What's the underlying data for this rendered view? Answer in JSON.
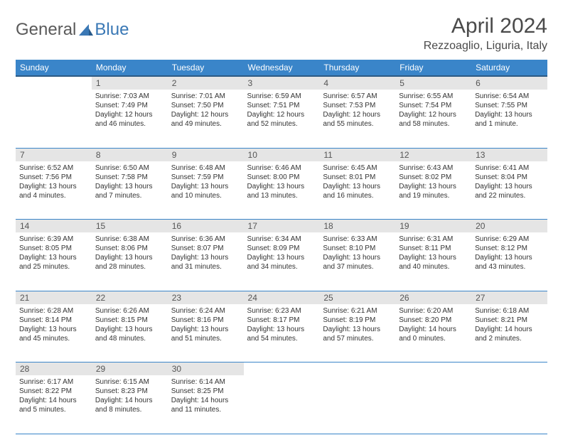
{
  "logo": {
    "general": "General",
    "blue": "Blue"
  },
  "title": "April 2024",
  "location": "Rezzoaglio, Liguria, Italy",
  "header_bg": "#3a85c9",
  "header_border": "#2c5a84",
  "cell_border": "#3a85c9",
  "daynum_bg": "#e5e5e5",
  "weekdays": [
    "Sunday",
    "Monday",
    "Tuesday",
    "Wednesday",
    "Thursday",
    "Friday",
    "Saturday"
  ],
  "rows": [
    {
      "nums": [
        "",
        "1",
        "2",
        "3",
        "4",
        "5",
        "6"
      ],
      "cells": [
        null,
        {
          "sr": "Sunrise: 7:03 AM",
          "ss": "Sunset: 7:49 PM",
          "d1": "Daylight: 12 hours",
          "d2": "and 46 minutes."
        },
        {
          "sr": "Sunrise: 7:01 AM",
          "ss": "Sunset: 7:50 PM",
          "d1": "Daylight: 12 hours",
          "d2": "and 49 minutes."
        },
        {
          "sr": "Sunrise: 6:59 AM",
          "ss": "Sunset: 7:51 PM",
          "d1": "Daylight: 12 hours",
          "d2": "and 52 minutes."
        },
        {
          "sr": "Sunrise: 6:57 AM",
          "ss": "Sunset: 7:53 PM",
          "d1": "Daylight: 12 hours",
          "d2": "and 55 minutes."
        },
        {
          "sr": "Sunrise: 6:55 AM",
          "ss": "Sunset: 7:54 PM",
          "d1": "Daylight: 12 hours",
          "d2": "and 58 minutes."
        },
        {
          "sr": "Sunrise: 6:54 AM",
          "ss": "Sunset: 7:55 PM",
          "d1": "Daylight: 13 hours",
          "d2": "and 1 minute."
        }
      ]
    },
    {
      "nums": [
        "7",
        "8",
        "9",
        "10",
        "11",
        "12",
        "13"
      ],
      "cells": [
        {
          "sr": "Sunrise: 6:52 AM",
          "ss": "Sunset: 7:56 PM",
          "d1": "Daylight: 13 hours",
          "d2": "and 4 minutes."
        },
        {
          "sr": "Sunrise: 6:50 AM",
          "ss": "Sunset: 7:58 PM",
          "d1": "Daylight: 13 hours",
          "d2": "and 7 minutes."
        },
        {
          "sr": "Sunrise: 6:48 AM",
          "ss": "Sunset: 7:59 PM",
          "d1": "Daylight: 13 hours",
          "d2": "and 10 minutes."
        },
        {
          "sr": "Sunrise: 6:46 AM",
          "ss": "Sunset: 8:00 PM",
          "d1": "Daylight: 13 hours",
          "d2": "and 13 minutes."
        },
        {
          "sr": "Sunrise: 6:45 AM",
          "ss": "Sunset: 8:01 PM",
          "d1": "Daylight: 13 hours",
          "d2": "and 16 minutes."
        },
        {
          "sr": "Sunrise: 6:43 AM",
          "ss": "Sunset: 8:02 PM",
          "d1": "Daylight: 13 hours",
          "d2": "and 19 minutes."
        },
        {
          "sr": "Sunrise: 6:41 AM",
          "ss": "Sunset: 8:04 PM",
          "d1": "Daylight: 13 hours",
          "d2": "and 22 minutes."
        }
      ]
    },
    {
      "nums": [
        "14",
        "15",
        "16",
        "17",
        "18",
        "19",
        "20"
      ],
      "cells": [
        {
          "sr": "Sunrise: 6:39 AM",
          "ss": "Sunset: 8:05 PM",
          "d1": "Daylight: 13 hours",
          "d2": "and 25 minutes."
        },
        {
          "sr": "Sunrise: 6:38 AM",
          "ss": "Sunset: 8:06 PM",
          "d1": "Daylight: 13 hours",
          "d2": "and 28 minutes."
        },
        {
          "sr": "Sunrise: 6:36 AM",
          "ss": "Sunset: 8:07 PM",
          "d1": "Daylight: 13 hours",
          "d2": "and 31 minutes."
        },
        {
          "sr": "Sunrise: 6:34 AM",
          "ss": "Sunset: 8:09 PM",
          "d1": "Daylight: 13 hours",
          "d2": "and 34 minutes."
        },
        {
          "sr": "Sunrise: 6:33 AM",
          "ss": "Sunset: 8:10 PM",
          "d1": "Daylight: 13 hours",
          "d2": "and 37 minutes."
        },
        {
          "sr": "Sunrise: 6:31 AM",
          "ss": "Sunset: 8:11 PM",
          "d1": "Daylight: 13 hours",
          "d2": "and 40 minutes."
        },
        {
          "sr": "Sunrise: 6:29 AM",
          "ss": "Sunset: 8:12 PM",
          "d1": "Daylight: 13 hours",
          "d2": "and 43 minutes."
        }
      ]
    },
    {
      "nums": [
        "21",
        "22",
        "23",
        "24",
        "25",
        "26",
        "27"
      ],
      "cells": [
        {
          "sr": "Sunrise: 6:28 AM",
          "ss": "Sunset: 8:14 PM",
          "d1": "Daylight: 13 hours",
          "d2": "and 45 minutes."
        },
        {
          "sr": "Sunrise: 6:26 AM",
          "ss": "Sunset: 8:15 PM",
          "d1": "Daylight: 13 hours",
          "d2": "and 48 minutes."
        },
        {
          "sr": "Sunrise: 6:24 AM",
          "ss": "Sunset: 8:16 PM",
          "d1": "Daylight: 13 hours",
          "d2": "and 51 minutes."
        },
        {
          "sr": "Sunrise: 6:23 AM",
          "ss": "Sunset: 8:17 PM",
          "d1": "Daylight: 13 hours",
          "d2": "and 54 minutes."
        },
        {
          "sr": "Sunrise: 6:21 AM",
          "ss": "Sunset: 8:19 PM",
          "d1": "Daylight: 13 hours",
          "d2": "and 57 minutes."
        },
        {
          "sr": "Sunrise: 6:20 AM",
          "ss": "Sunset: 8:20 PM",
          "d1": "Daylight: 14 hours",
          "d2": "and 0 minutes."
        },
        {
          "sr": "Sunrise: 6:18 AM",
          "ss": "Sunset: 8:21 PM",
          "d1": "Daylight: 14 hours",
          "d2": "and 2 minutes."
        }
      ]
    },
    {
      "nums": [
        "28",
        "29",
        "30",
        "",
        "",
        "",
        ""
      ],
      "cells": [
        {
          "sr": "Sunrise: 6:17 AM",
          "ss": "Sunset: 8:22 PM",
          "d1": "Daylight: 14 hours",
          "d2": "and 5 minutes."
        },
        {
          "sr": "Sunrise: 6:15 AM",
          "ss": "Sunset: 8:23 PM",
          "d1": "Daylight: 14 hours",
          "d2": "and 8 minutes."
        },
        {
          "sr": "Sunrise: 6:14 AM",
          "ss": "Sunset: 8:25 PM",
          "d1": "Daylight: 14 hours",
          "d2": "and 11 minutes."
        },
        null,
        null,
        null,
        null
      ]
    }
  ]
}
